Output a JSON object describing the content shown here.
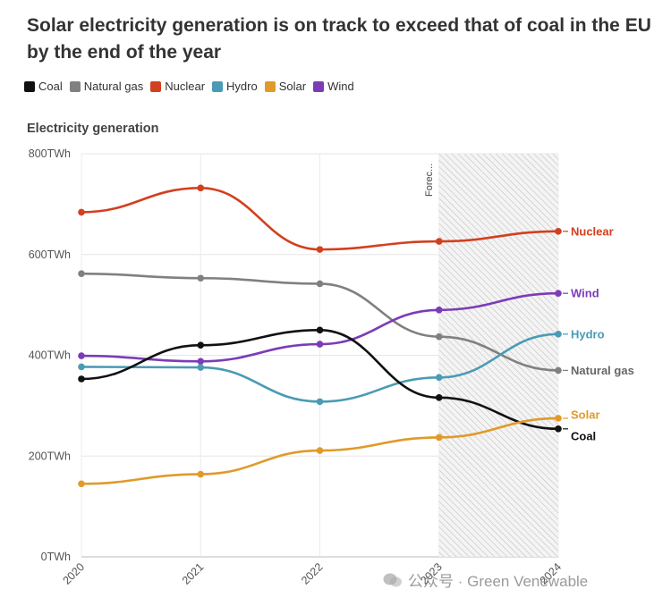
{
  "title": "Solar electricity generation is on track to exceed that of coal in the EU by the end of the year",
  "legend": [
    {
      "name": "Coal",
      "color": "#111111"
    },
    {
      "name": "Natural gas",
      "color": "#808080"
    },
    {
      "name": "Nuclear",
      "color": "#d2401f"
    },
    {
      "name": "Hydro",
      "color": "#4a9bb5"
    },
    {
      "name": "Solar",
      "color": "#e09a2a"
    },
    {
      "name": "Wind",
      "color": "#7b3cb8"
    }
  ],
  "chart_heading": "Electricity generation",
  "forecast_label": "Forec...",
  "watermark": "公众号 · Green Venewable",
  "chart_data": {
    "type": "line",
    "title": "Solar electricity generation is on track to exceed that of coal in the EU by the end of the year",
    "ylabel": "Electricity generation",
    "x": [
      "2020",
      "2021",
      "2022",
      "2023",
      "2024"
    ],
    "y_ticks": [
      "0TWh",
      "200TWh",
      "400TWh",
      "600TWh",
      "800TWh"
    ],
    "ylim": [
      0,
      800
    ],
    "forecast_from": "2023",
    "grid": true,
    "legend_position": "top-left",
    "series": [
      {
        "name": "Nuclear",
        "color": "#d2401f",
        "values": [
          684,
          732,
          610,
          626,
          646
        ]
      },
      {
        "name": "Natural gas",
        "color": "#808080",
        "values": [
          562,
          553,
          542,
          437,
          370
        ]
      },
      {
        "name": "Wind",
        "color": "#7b3cb8",
        "values": [
          399,
          388,
          422,
          490,
          523
        ]
      },
      {
        "name": "Hydro",
        "color": "#4a9bb5",
        "values": [
          377,
          376,
          308,
          356,
          442
        ]
      },
      {
        "name": "Coal",
        "color": "#111111",
        "values": [
          353,
          420,
          450,
          316,
          254
        ]
      },
      {
        "name": "Solar",
        "color": "#e09a2a",
        "values": [
          145,
          164,
          211,
          237,
          275
        ]
      }
    ]
  }
}
